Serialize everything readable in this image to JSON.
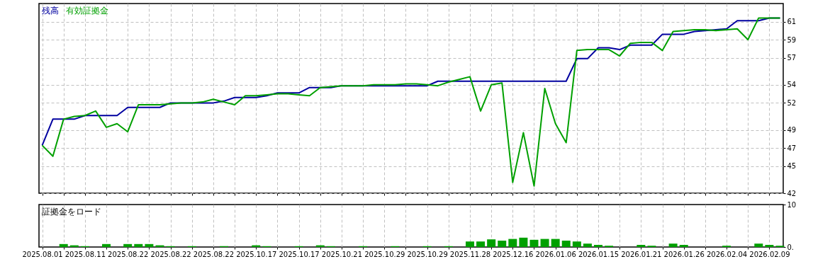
{
  "chart_data": [
    {
      "type": "line",
      "legend": "top left",
      "grid": true,
      "tick_labels": "y",
      "categories": [
        "2025.08.01",
        null,
        null,
        null,
        "2025.08.11",
        null,
        null,
        null,
        "2025.08.22",
        null,
        null,
        null,
        "2025.08.22",
        null,
        null,
        null,
        "2025.08.22",
        null,
        null,
        null,
        "2025.10.17",
        null,
        null,
        null,
        "2025.10.17",
        null,
        null,
        null,
        "2025.10.21",
        null,
        null,
        null,
        "2025.10.29",
        null,
        null,
        null,
        "2025.10.29",
        null,
        null,
        null,
        "2025.11.28",
        null,
        null,
        null,
        "2025.12.16",
        null,
        null,
        null,
        "2026.01.06",
        null,
        null,
        null,
        "2026.01.15",
        null,
        null,
        null,
        "2026.01.21",
        null,
        null,
        null,
        "2026.01.26",
        null,
        null,
        null,
        "2026.02.04",
        null,
        null,
        null,
        "2026.02.09",
        null
      ],
      "series": [
        {
          "name": "残高",
          "color": "#0000a0",
          "values": [
            47.3,
            50.2,
            50.2,
            50.2,
            50.6,
            50.6,
            50.6,
            50.6,
            51.5,
            51.5,
            51.5,
            51.5,
            52.0,
            52.0,
            52.0,
            52.0,
            52.0,
            52.2,
            52.6,
            52.6,
            52.6,
            52.8,
            53.1,
            53.1,
            53.1,
            53.7,
            53.7,
            53.7,
            53.9,
            53.9,
            53.9,
            53.9,
            53.9,
            53.9,
            53.9,
            53.9,
            53.9,
            54.4,
            54.4,
            54.4,
            54.4,
            54.4,
            54.4,
            54.4,
            54.4,
            54.4,
            54.4,
            54.4,
            54.4,
            54.4,
            56.9,
            56.9,
            58.1,
            58.1,
            57.9,
            58.4,
            58.4,
            58.4,
            59.6,
            59.6,
            59.6,
            59.9,
            60.0,
            60.1,
            60.2,
            61.1,
            61.1,
            61.1,
            61.4,
            61.4
          ]
        },
        {
          "name": "有効証拠金",
          "color": "#00a000",
          "values": [
            47.3,
            46.1,
            50.2,
            50.5,
            50.6,
            51.1,
            49.3,
            49.7,
            48.8,
            51.8,
            51.8,
            51.8,
            51.9,
            52.0,
            52.0,
            52.1,
            52.4,
            52.1,
            51.8,
            52.8,
            52.8,
            52.9,
            53.0,
            53.0,
            52.9,
            52.8,
            53.7,
            53.8,
            53.9,
            53.9,
            53.9,
            54.0,
            54.0,
            54.0,
            54.1,
            54.1,
            54.0,
            53.9,
            54.3,
            54.6,
            54.9,
            51.1,
            54.0,
            54.2,
            43.2,
            48.7,
            42.8,
            53.6,
            49.7,
            47.6,
            57.8,
            57.9,
            57.9,
            57.9,
            57.2,
            58.6,
            58.7,
            58.7,
            57.8,
            59.9,
            60.0,
            60.1,
            60.1,
            60.0,
            60.1,
            60.2,
            59.0,
            61.4,
            61.4,
            61.4
          ]
        }
      ],
      "ylim": [
        42,
        63
      ],
      "yticks": [
        42,
        45,
        47,
        49,
        52,
        54,
        57,
        59,
        61
      ]
    },
    {
      "type": "bar",
      "title": "証拠金をロード",
      "color": "#00a000",
      "grid": "x",
      "categories": [
        "2025.08.01",
        null,
        null,
        null,
        "2025.08.11",
        null,
        null,
        null,
        "2025.08.22",
        null,
        null,
        null,
        "2025.08.22",
        null,
        null,
        null,
        "2025.08.22",
        null,
        null,
        null,
        "2025.10.17",
        null,
        null,
        null,
        "2025.10.17",
        null,
        null,
        null,
        "2025.10.21",
        null,
        null,
        null,
        "2025.10.29",
        null,
        null,
        null,
        "2025.10.29",
        null,
        null,
        null,
        "2025.11.28",
        null,
        null,
        null,
        "2025.12.16",
        null,
        null,
        null,
        "2026.01.06",
        null,
        null,
        null,
        "2026.01.15",
        null,
        null,
        null,
        "2026.01.21",
        null,
        null,
        null,
        "2026.01.26",
        null,
        null,
        null,
        "2026.02.04",
        null,
        null,
        null,
        "2026.02.09",
        null
      ],
      "values": [
        null,
        null,
        0.7,
        0.4,
        0.2,
        null,
        0.7,
        null,
        0.7,
        0.7,
        0.7,
        0.4,
        0.2,
        null,
        0.2,
        null,
        null,
        0.2,
        null,
        null,
        0.4,
        0.2,
        null,
        null,
        0.2,
        null,
        0.4,
        0.2,
        null,
        null,
        0.2,
        null,
        null,
        0.2,
        null,
        null,
        0.2,
        null,
        0.2,
        null,
        1.3,
        1.3,
        1.8,
        1.5,
        1.9,
        2.2,
        1.7,
        1.9,
        1.9,
        1.5,
        1.3,
        0.8,
        0.5,
        0.3,
        null,
        null,
        0.5,
        0.3,
        null,
        0.8,
        0.5,
        null,
        null,
        null,
        0.3,
        null,
        null,
        0.8,
        0.5,
        0.3
      ],
      "ylim": [
        0,
        10
      ],
      "yticks": [
        {
          "value": 0,
          "label": "0."
        },
        10
      ]
    }
  ]
}
